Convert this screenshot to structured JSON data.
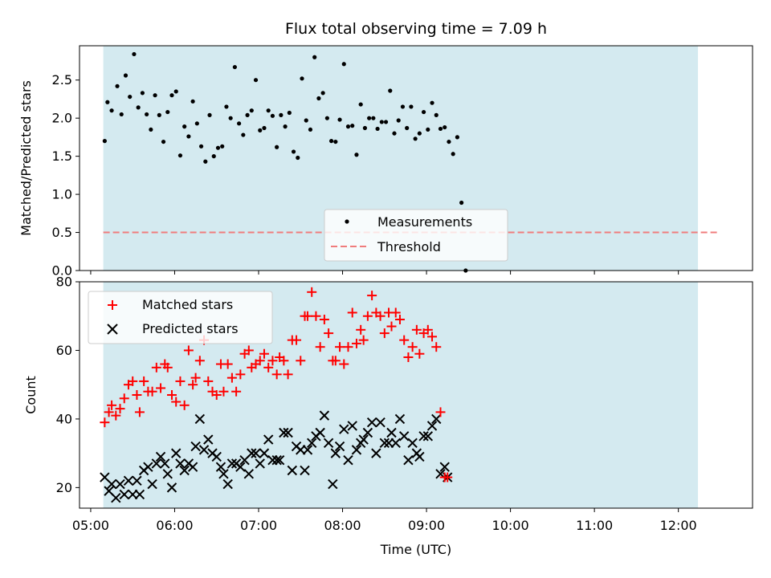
{
  "chart_data": {
    "type": "scatter",
    "title": "Flux total observing time = 7.09 h",
    "xlabel": "Time (UTC)",
    "x_ticks": [
      "05:00",
      "06:00",
      "07:00",
      "08:00",
      "09:00",
      "10:00",
      "11:00",
      "12:00"
    ],
    "xlim": [
      "04:52",
      "12:53"
    ],
    "observing_window": [
      "05:09",
      "12:14"
    ],
    "top_panel": {
      "ylabel": "Matched/Predicted stars",
      "ylim": [
        0,
        2.95
      ],
      "y_ticks": [
        "0.0",
        "0.5",
        "1.0",
        "1.5",
        "2.0",
        "2.5"
      ],
      "threshold": 0.5,
      "legend": [
        "Measurements",
        "Threshold"
      ],
      "legend_position": "lower-center",
      "series": [
        {
          "name": "Measurements",
          "points": [
            [
              "05:10",
              1.7
            ],
            [
              "05:12",
              2.21
            ],
            [
              "05:15",
              2.1
            ],
            [
              "05:19",
              2.42
            ],
            [
              "05:22",
              2.05
            ],
            [
              "05:25",
              2.56
            ],
            [
              "05:28",
              2.28
            ],
            [
              "05:31",
              2.84
            ],
            [
              "05:34",
              2.14
            ],
            [
              "05:37",
              2.33
            ],
            [
              "05:40",
              2.05
            ],
            [
              "05:43",
              1.85
            ],
            [
              "05:46",
              2.3
            ],
            [
              "05:49",
              2.04
            ],
            [
              "05:52",
              1.69
            ],
            [
              "05:55",
              2.08
            ],
            [
              "05:58",
              2.3
            ],
            [
              "06:01",
              2.35
            ],
            [
              "06:04",
              1.51
            ],
            [
              "06:07",
              1.89
            ],
            [
              "06:10",
              1.76
            ],
            [
              "06:13",
              2.22
            ],
            [
              "06:16",
              1.93
            ],
            [
              "06:19",
              1.63
            ],
            [
              "06:22",
              1.43
            ],
            [
              "06:25",
              2.04
            ],
            [
              "06:28",
              1.5
            ],
            [
              "06:31",
              1.61
            ],
            [
              "06:34",
              1.63
            ],
            [
              "06:37",
              2.15
            ],
            [
              "06:40",
              2.0
            ],
            [
              "06:43",
              2.67
            ],
            [
              "06:46",
              1.93
            ],
            [
              "06:49",
              1.78
            ],
            [
              "06:52",
              2.04
            ],
            [
              "06:55",
              2.1
            ],
            [
              "06:58",
              2.5
            ],
            [
              "07:01",
              1.84
            ],
            [
              "07:04",
              1.87
            ],
            [
              "07:07",
              2.1
            ],
            [
              "07:10",
              2.03
            ],
            [
              "07:13",
              1.62
            ],
            [
              "07:16",
              2.04
            ],
            [
              "07:19",
              1.89
            ],
            [
              "07:22",
              2.07
            ],
            [
              "07:25",
              1.56
            ],
            [
              "07:28",
              1.48
            ],
            [
              "07:31",
              2.52
            ],
            [
              "07:34",
              1.97
            ],
            [
              "07:37",
              1.85
            ],
            [
              "07:40",
              2.8
            ],
            [
              "07:43",
              2.26
            ],
            [
              "07:46",
              2.33
            ],
            [
              "07:49",
              2.0
            ],
            [
              "07:52",
              1.7
            ],
            [
              "07:55",
              1.69
            ],
            [
              "07:58",
              1.98
            ],
            [
              "08:01",
              2.71
            ],
            [
              "08:04",
              1.89
            ],
            [
              "08:07",
              1.9
            ],
            [
              "08:10",
              1.52
            ],
            [
              "08:13",
              2.18
            ],
            [
              "08:16",
              1.87
            ],
            [
              "08:19",
              2.0
            ],
            [
              "08:22",
              2.0
            ],
            [
              "08:25",
              1.86
            ],
            [
              "08:28",
              1.95
            ],
            [
              "08:31",
              1.95
            ],
            [
              "08:34",
              2.36
            ],
            [
              "08:37",
              1.8
            ],
            [
              "08:40",
              1.97
            ],
            [
              "08:43",
              2.15
            ],
            [
              "08:46",
              1.87
            ],
            [
              "08:49",
              2.15
            ],
            [
              "08:52",
              1.73
            ],
            [
              "08:55",
              1.8
            ],
            [
              "08:58",
              2.08
            ],
            [
              "09:01",
              1.85
            ],
            [
              "09:04",
              2.2
            ],
            [
              "09:07",
              2.04
            ],
            [
              "09:10",
              1.86
            ],
            [
              "09:13",
              1.88
            ],
            [
              "09:16",
              1.69
            ],
            [
              "09:19",
              1.53
            ],
            [
              "09:22",
              1.75
            ],
            [
              "09:25",
              0.89
            ],
            [
              "09:28",
              0.0
            ]
          ]
        }
      ]
    },
    "bottom_panel": {
      "ylabel": "Count",
      "ylim": [
        14,
        80
      ],
      "y_ticks": [
        "20",
        "40",
        "60",
        "80"
      ],
      "legend": [
        "Matched stars",
        "Predicted stars"
      ],
      "legend_position": "upper-left",
      "series": [
        {
          "name": "Matched stars",
          "points": [
            [
              "05:10",
              39
            ],
            [
              "05:13",
              42
            ],
            [
              "05:15",
              44
            ],
            [
              "05:18",
              41
            ],
            [
              "05:21",
              43
            ],
            [
              "05:24",
              46
            ],
            [
              "05:27",
              50
            ],
            [
              "05:30",
              51
            ],
            [
              "05:33",
              47
            ],
            [
              "05:35",
              42
            ],
            [
              "05:38",
              51
            ],
            [
              "05:41",
              48
            ],
            [
              "05:44",
              48
            ],
            [
              "05:47",
              55
            ],
            [
              "05:50",
              49
            ],
            [
              "05:53",
              56
            ],
            [
              "05:55",
              55
            ],
            [
              "05:58",
              47
            ],
            [
              "06:01",
              45
            ],
            [
              "06:04",
              51
            ],
            [
              "06:07",
              44
            ],
            [
              "06:10",
              60
            ],
            [
              "06:13",
              50
            ],
            [
              "06:15",
              52
            ],
            [
              "06:18",
              57
            ],
            [
              "06:21",
              63
            ],
            [
              "06:24",
              51
            ],
            [
              "06:27",
              48
            ],
            [
              "06:30",
              47
            ],
            [
              "06:33",
              56
            ],
            [
              "06:35",
              48
            ],
            [
              "06:38",
              56
            ],
            [
              "06:41",
              52
            ],
            [
              "06:44",
              48
            ],
            [
              "06:47",
              53
            ],
            [
              "06:50",
              59
            ],
            [
              "06:53",
              60
            ],
            [
              "06:55",
              55
            ],
            [
              "06:58",
              56
            ],
            [
              "07:01",
              57
            ],
            [
              "07:04",
              59
            ],
            [
              "07:07",
              55
            ],
            [
              "07:10",
              57
            ],
            [
              "07:13",
              53
            ],
            [
              "07:15",
              58
            ],
            [
              "07:18",
              57
            ],
            [
              "07:21",
              53
            ],
            [
              "07:24",
              63
            ],
            [
              "07:27",
              63
            ],
            [
              "07:30",
              57
            ],
            [
              "07:33",
              70
            ],
            [
              "07:35",
              70
            ],
            [
              "07:38",
              77
            ],
            [
              "07:41",
              70
            ],
            [
              "07:44",
              61
            ],
            [
              "07:47",
              69
            ],
            [
              "07:50",
              65
            ],
            [
              "07:53",
              57
            ],
            [
              "07:55",
              57
            ],
            [
              "07:58",
              61
            ],
            [
              "08:01",
              56
            ],
            [
              "08:04",
              61
            ],
            [
              "08:07",
              71
            ],
            [
              "08:10",
              62
            ],
            [
              "08:13",
              66
            ],
            [
              "08:15",
              63
            ],
            [
              "08:18",
              70
            ],
            [
              "08:21",
              76
            ],
            [
              "08:24",
              71
            ],
            [
              "08:27",
              70
            ],
            [
              "08:30",
              65
            ],
            [
              "08:33",
              71
            ],
            [
              "08:35",
              67
            ],
            [
              "08:38",
              71
            ],
            [
              "08:41",
              69
            ],
            [
              "08:44",
              63
            ],
            [
              "08:47",
              58
            ],
            [
              "08:50",
              61
            ],
            [
              "08:53",
              66
            ],
            [
              "08:55",
              59
            ],
            [
              "08:58",
              65
            ],
            [
              "09:01",
              66
            ],
            [
              "09:04",
              64
            ],
            [
              "09:07",
              61
            ],
            [
              "09:10",
              42
            ],
            [
              "09:13",
              23
            ],
            [
              "09:15",
              23
            ]
          ]
        },
        {
          "name": "Predicted stars",
          "points": [
            [
              "05:10",
              23
            ],
            [
              "05:13",
              19
            ],
            [
              "05:15",
              21
            ],
            [
              "05:18",
              17
            ],
            [
              "05:21",
              21
            ],
            [
              "05:24",
              18
            ],
            [
              "05:27",
              22
            ],
            [
              "05:30",
              18
            ],
            [
              "05:33",
              22
            ],
            [
              "05:35",
              18
            ],
            [
              "05:38",
              25
            ],
            [
              "05:41",
              26
            ],
            [
              "05:44",
              21
            ],
            [
              "05:47",
              27
            ],
            [
              "05:50",
              29
            ],
            [
              "05:53",
              27
            ],
            [
              "05:55",
              24
            ],
            [
              "05:58",
              20
            ],
            [
              "06:01",
              30
            ],
            [
              "06:04",
              27
            ],
            [
              "06:07",
              25
            ],
            [
              "06:10",
              27
            ],
            [
              "06:13",
              26
            ],
            [
              "06:15",
              32
            ],
            [
              "06:18",
              40
            ],
            [
              "06:21",
              31
            ],
            [
              "06:24",
              34
            ],
            [
              "06:27",
              30
            ],
            [
              "06:30",
              29
            ],
            [
              "06:33",
              26
            ],
            [
              "06:35",
              24
            ],
            [
              "06:38",
              21
            ],
            [
              "06:41",
              27
            ],
            [
              "06:44",
              27
            ],
            [
              "06:47",
              26
            ],
            [
              "06:50",
              28
            ],
            [
              "06:53",
              24
            ],
            [
              "06:55",
              30
            ],
            [
              "06:58",
              30
            ],
            [
              "07:01",
              27
            ],
            [
              "07:04",
              30
            ],
            [
              "07:07",
              34
            ],
            [
              "07:10",
              28
            ],
            [
              "07:13",
              28
            ],
            [
              "07:15",
              28
            ],
            [
              "07:18",
              36
            ],
            [
              "07:21",
              36
            ],
            [
              "07:24",
              25
            ],
            [
              "07:27",
              32
            ],
            [
              "07:30",
              31
            ],
            [
              "07:33",
              25
            ],
            [
              "07:35",
              31
            ],
            [
              "07:38",
              33
            ],
            [
              "07:41",
              35
            ],
            [
              "07:44",
              36
            ],
            [
              "07:47",
              41
            ],
            [
              "07:50",
              33
            ],
            [
              "07:53",
              21
            ],
            [
              "07:55",
              30
            ],
            [
              "07:58",
              32
            ],
            [
              "08:01",
              37
            ],
            [
              "08:04",
              28
            ],
            [
              "08:07",
              38
            ],
            [
              "08:10",
              31
            ],
            [
              "08:13",
              33
            ],
            [
              "08:15",
              34
            ],
            [
              "08:18",
              36
            ],
            [
              "08:21",
              39
            ],
            [
              "08:24",
              30
            ],
            [
              "08:27",
              39
            ],
            [
              "08:30",
              33
            ],
            [
              "08:33",
              33
            ],
            [
              "08:35",
              36
            ],
            [
              "08:38",
              33
            ],
            [
              "08:41",
              40
            ],
            [
              "08:44",
              35
            ],
            [
              "08:47",
              28
            ],
            [
              "08:50",
              33
            ],
            [
              "08:53",
              30
            ],
            [
              "08:55",
              29
            ],
            [
              "08:58",
              35
            ],
            [
              "09:01",
              35
            ],
            [
              "09:04",
              38
            ],
            [
              "09:07",
              40
            ],
            [
              "09:10",
              24
            ],
            [
              "09:13",
              26
            ],
            [
              "09:15",
              23
            ]
          ]
        }
      ]
    }
  },
  "colors": {
    "observing_window": "#d4eaf0",
    "measurements": "#000000",
    "threshold": "#f07c7c",
    "matched": "#ff0000",
    "predicted": "#000000"
  }
}
